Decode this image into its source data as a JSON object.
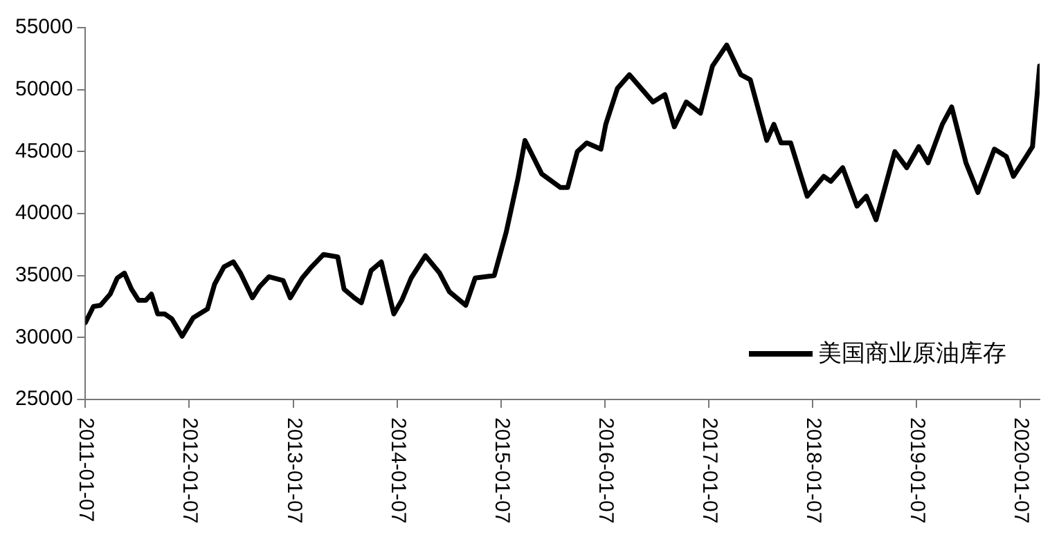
{
  "chart_data": {
    "type": "line",
    "x": [
      "2011-01-07",
      "2011-02-04",
      "2011-03-01",
      "2011-04-04",
      "2011-04-29",
      "2011-05-24",
      "2011-06-18",
      "2011-07-13",
      "2011-08-07",
      "2011-08-27",
      "2011-09-18",
      "2011-10-13",
      "2011-11-07",
      "2011-12-13",
      "2012-01-21",
      "2012-03-11",
      "2012-04-05",
      "2012-05-08",
      "2012-06-10",
      "2012-07-05",
      "2012-08-16",
      "2012-09-10",
      "2012-10-13",
      "2012-12-02",
      "2012-12-27",
      "2013-02-07",
      "2013-03-12",
      "2013-04-23",
      "2013-06-12",
      "2013-07-04",
      "2013-08-09",
      "2013-09-03",
      "2013-10-07",
      "2013-11-12",
      "2013-12-26",
      "2014-01-23",
      "2014-02-25",
      "2014-04-16",
      "2014-06-05",
      "2014-07-09",
      "2014-09-05",
      "2014-10-08",
      "2014-12-14",
      "2015-01-25",
      "2015-03-07",
      "2015-04-01",
      "2015-05-30",
      "2015-08-04",
      "2015-08-29",
      "2015-10-02",
      "2015-11-04",
      "2015-12-24",
      "2016-01-10",
      "2016-02-20",
      "2016-04-02",
      "2016-06-24",
      "2016-08-05",
      "2016-09-07",
      "2016-10-19",
      "2016-12-08",
      "2017-01-19",
      "2017-03-10",
      "2017-04-29",
      "2017-06-01",
      "2017-07-29",
      "2017-08-23",
      "2017-09-17",
      "2017-10-21",
      "2017-12-18",
      "2018-02-14",
      "2018-03-11",
      "2018-04-22",
      "2018-06-11",
      "2018-07-14",
      "2018-08-17",
      "2018-10-22",
      "2018-12-03",
      "2019-01-14",
      "2019-02-16",
      "2019-04-07",
      "2019-05-10",
      "2019-06-29",
      "2019-08-10",
      "2019-10-07",
      "2019-11-18",
      "2019-12-13",
      "2020-01-24",
      "2020-02-18",
      "2020-03-14"
    ],
    "series": [
      {
        "name": "美国商业原油库存",
        "color": "#000000",
        "values": [
          31200,
          32500,
          32600,
          33500,
          34800,
          35200,
          33900,
          33000,
          33000,
          33500,
          31900,
          31900,
          31500,
          30100,
          31600,
          32300,
          34300,
          35700,
          36100,
          35200,
          33200,
          34100,
          34900,
          34600,
          33200,
          34800,
          35700,
          36700,
          36500,
          33900,
          33200,
          32800,
          35400,
          36100,
          31900,
          33000,
          34800,
          36600,
          35200,
          33700,
          32600,
          34800,
          35000,
          38500,
          42800,
          45900,
          43200,
          42100,
          42100,
          45000,
          45700,
          45200,
          47200,
          50100,
          51200,
          49000,
          49600,
          47000,
          49000,
          48100,
          51900,
          53600,
          51200,
          50800,
          45900,
          47200,
          45700,
          45700,
          41400,
          43000,
          42600,
          43700,
          40600,
          41400,
          39500,
          45000,
          43700,
          45400,
          44100,
          47200,
          48600,
          44100,
          41700,
          45200,
          44600,
          43000,
          44500,
          45400,
          51900
        ]
      }
    ],
    "xlim": [
      "2011-01-07",
      "2020-03-14"
    ],
    "xticks": [
      "2011-01-07",
      "2012-01-07",
      "2013-01-07",
      "2014-01-07",
      "2015-01-07",
      "2016-01-07",
      "2017-01-07",
      "2018-01-07",
      "2019-01-07",
      "2020-01-07"
    ],
    "ylim": [
      25000,
      55000
    ],
    "yticks": [
      25000,
      30000,
      35000,
      40000,
      45000,
      50000,
      55000
    ],
    "grid": false,
    "legend": "bottom right",
    "marker": "none",
    "line_style": "solid"
  }
}
